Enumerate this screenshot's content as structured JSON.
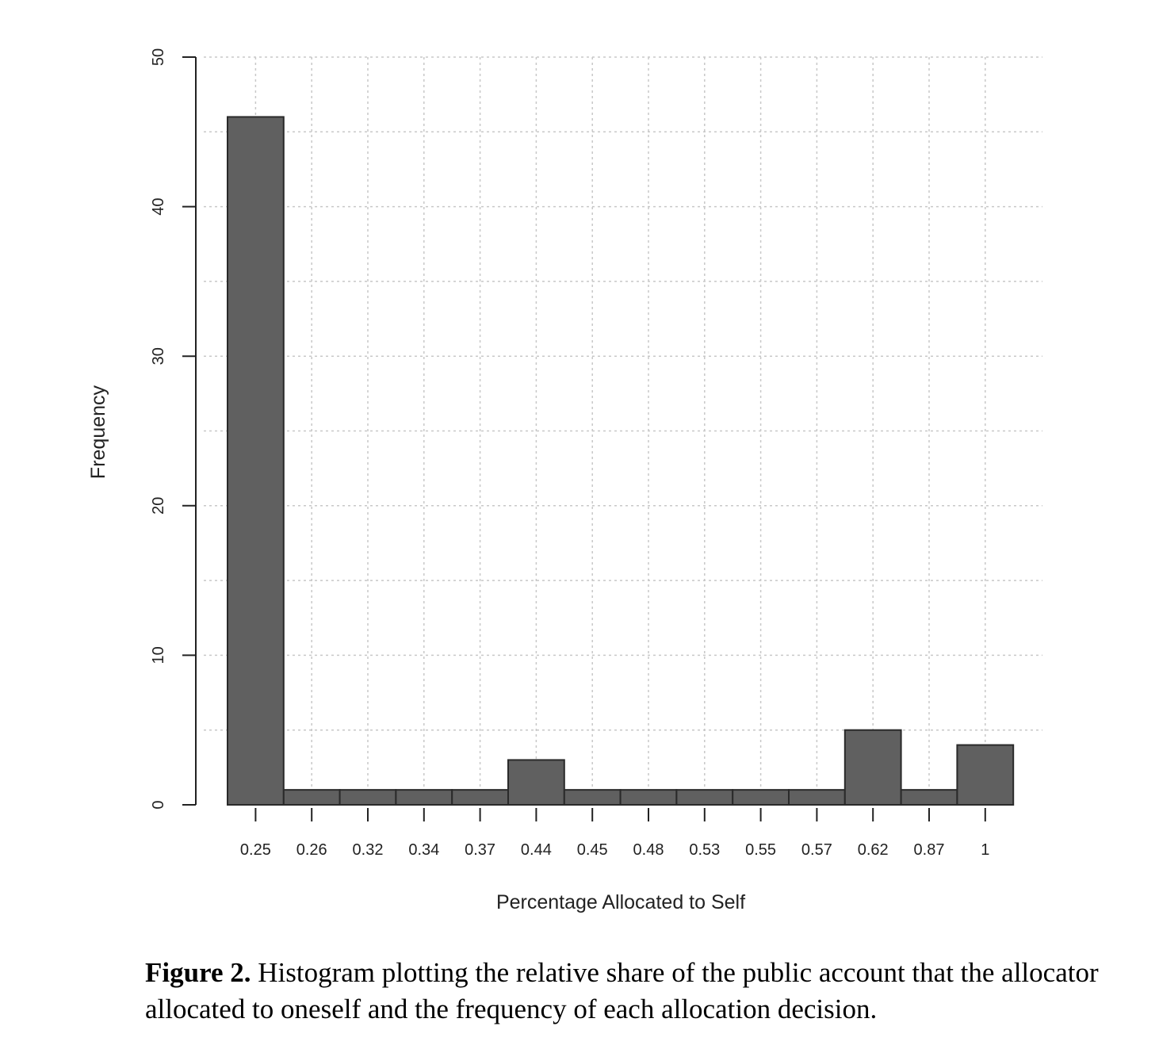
{
  "chart_data": {
    "type": "bar",
    "categories": [
      "0.25",
      "0.26",
      "0.32",
      "0.34",
      "0.37",
      "0.44",
      "0.45",
      "0.48",
      "0.53",
      "0.55",
      "0.57",
      "0.62",
      "0.87",
      "1"
    ],
    "values": [
      46,
      1,
      1,
      1,
      1,
      3,
      1,
      1,
      1,
      1,
      1,
      5,
      1,
      4
    ],
    "xlabel": "Percentage Allocated to Self",
    "ylabel": "Frequency",
    "ylim": [
      0,
      50
    ],
    "yticks": [
      "0",
      "10",
      "20",
      "30",
      "40",
      "50"
    ],
    "grid": true,
    "bar_color": "#606060"
  },
  "caption": {
    "label": "Figure 2.",
    "text": " Histogram plotting the relative share of the public account that the allocator allocated to oneself and the frequency of each allocation decision."
  }
}
